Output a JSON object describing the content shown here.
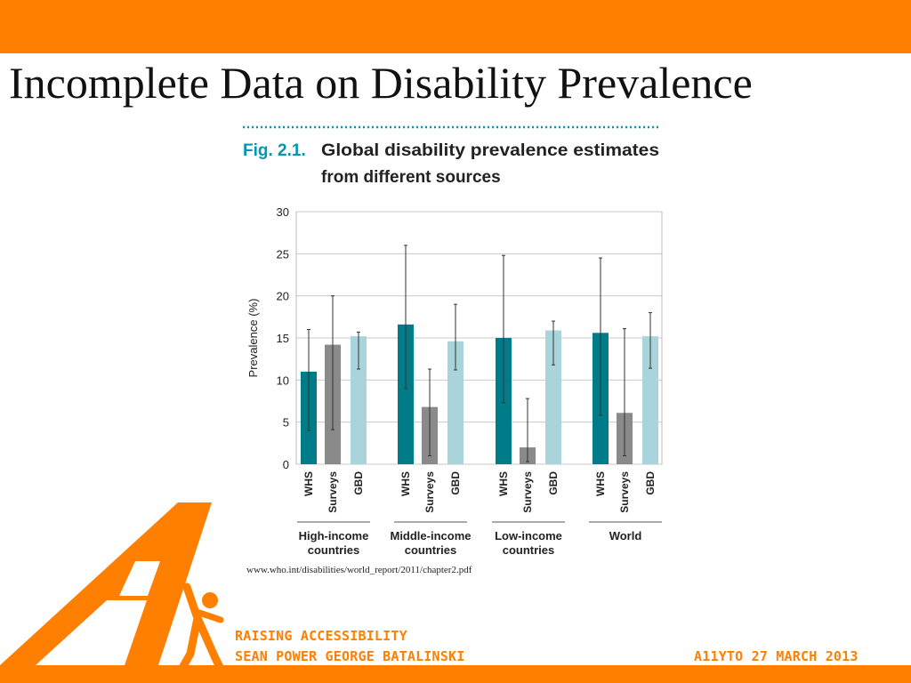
{
  "slide": {
    "title": "Incomplete Data on Disability Prevalence",
    "source_url": "www.who.int/disabilities/world_report/2011/chapter2.pdf"
  },
  "footer": {
    "line1": "RAISING ACCESSIBILITY",
    "line2": "SEAN POWER GEORGE BATALINSKI",
    "event": "A11YTO 27 MARCH 2013"
  },
  "colors": {
    "brand_orange": "#ff7f00",
    "fig_blue": "#0097b2",
    "whs": "#007c89",
    "surveys": "#8a8a8a",
    "gbd": "#a9d4dc"
  },
  "chart_data": {
    "type": "bar",
    "fig_label": "Fig. 2.1.",
    "title_line1": "Global disability prevalence estimates",
    "title_line2": "from different sources",
    "ylabel": "Prevalence (%)",
    "ylim": [
      0,
      30
    ],
    "yticks": [
      0,
      5,
      10,
      15,
      20,
      25,
      30
    ],
    "grid": true,
    "bar_labels": [
      "WHS",
      "Surveys",
      "GBD"
    ],
    "groups": [
      {
        "label_lines": [
          "High-income",
          "countries"
        ]
      },
      {
        "label_lines": [
          "Middle-income",
          "countries"
        ]
      },
      {
        "label_lines": [
          "Low-income",
          "countries"
        ]
      },
      {
        "label_lines": [
          "World"
        ]
      }
    ],
    "series": [
      {
        "name": "WHS",
        "values": [
          11,
          16.6,
          15,
          15.6
        ],
        "err_low": [
          4,
          9,
          7.3,
          5.8
        ],
        "err_high": [
          16,
          26,
          24.8,
          24.5
        ]
      },
      {
        "name": "Surveys",
        "values": [
          14.2,
          6.8,
          2,
          6.1
        ],
        "err_low": [
          4.1,
          1,
          0.3,
          1
        ],
        "err_high": [
          20,
          11.3,
          7.8,
          16.1
        ]
      },
      {
        "name": "GBD",
        "values": [
          15.2,
          14.6,
          15.9,
          15.2
        ],
        "err_low": [
          11.3,
          11.2,
          11.8,
          11.4
        ],
        "err_high": [
          15.7,
          19,
          17,
          18
        ]
      }
    ]
  }
}
